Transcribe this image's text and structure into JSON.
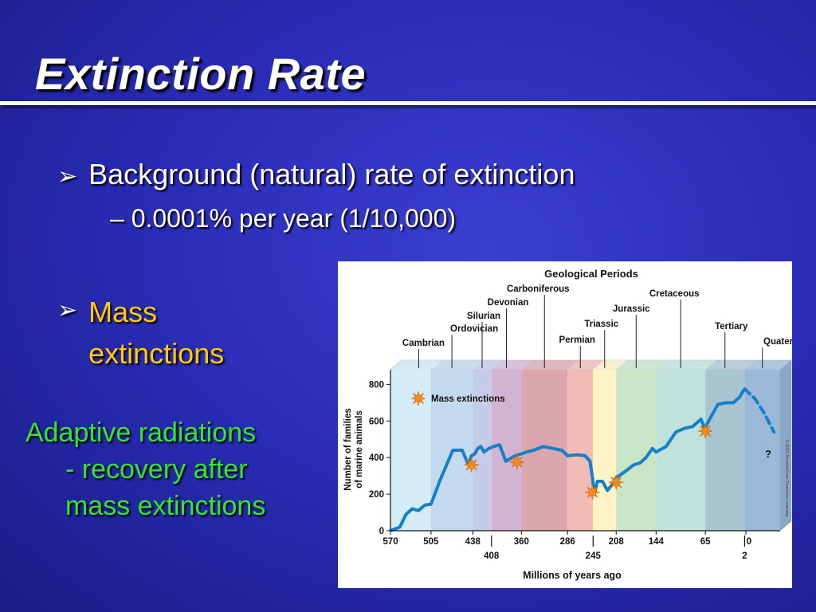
{
  "slide": {
    "title": "Extinction Rate",
    "bullets": [
      {
        "text": "Background (natural) rate of extinction",
        "sub": "– 0.0001% per year (1/10,000)"
      },
      {
        "line1": "Mass",
        "line2": "extinctions"
      }
    ],
    "adaptive_lines": [
      "Adaptive radiations",
      "- recovery after",
      "mass extinctions"
    ],
    "arrow_glyph": "➢"
  },
  "chart_data": {
    "type": "line",
    "title": "Geological Periods",
    "xlabel": "Millions of years ago",
    "ylabel_lines": [
      "Number of families",
      "of marine animals"
    ],
    "ylim": [
      0,
      880
    ],
    "xlim": [
      570,
      -55
    ],
    "yticks": [
      0,
      200,
      400,
      600,
      800
    ],
    "x_ticks_top": [
      "570",
      "505",
      "438",
      "360",
      "286",
      "208",
      "144",
      "65",
      "0"
    ],
    "x_ticks_bottom": [
      "408",
      "245",
      "2"
    ],
    "periods": [
      {
        "name": "Cambrian",
        "start": 570,
        "end": 505,
        "color": "#d4ecf8"
      },
      {
        "name": "Ordovician",
        "start": 505,
        "end": 438,
        "color": "#c3d9ee"
      },
      {
        "name": "Silurian",
        "start": 438,
        "end": 408,
        "color": "#c6cbe9"
      },
      {
        "name": "Devonian",
        "start": 408,
        "end": 360,
        "color": "#d3b3d3"
      },
      {
        "name": "Carboniferous",
        "start": 360,
        "end": 286,
        "color": "#dca6ae"
      },
      {
        "name": "Permian",
        "start": 286,
        "end": 245,
        "color": "#f2bbb5"
      },
      {
        "name": "Triassic",
        "start": 245,
        "end": 208,
        "color": "#fff2c4"
      },
      {
        "name": "Jurassic",
        "start": 208,
        "end": 144,
        "color": "#c8e5c6"
      },
      {
        "name": "Cretaceous",
        "start": 144,
        "end": 65,
        "color": "#bfe3dc"
      },
      {
        "name": "Tertiary",
        "start": 65,
        "end": 2,
        "color": "#a9c5d2"
      },
      {
        "name": "Quaternary",
        "start": 2,
        "end": -55,
        "color": "#9ab9d8"
      }
    ],
    "series": [
      {
        "name": "",
        "color": "#1680c6",
        "x": [
          570,
          555,
          545,
          535,
          525,
          515,
          505,
          490,
          470,
          455,
          445,
          440,
          435,
          430,
          425,
          420,
          412,
          405,
          395,
          385,
          370,
          360,
          352,
          340,
          325,
          310,
          295,
          286,
          270,
          258,
          250,
          246,
          243,
          238,
          230,
          222,
          215,
          208,
          195,
          180,
          170,
          160,
          150,
          144,
          128,
          112,
          98,
          85,
          72,
          66,
          58,
          45,
          32,
          20,
          10,
          5,
          2
        ],
        "y": [
          0,
          20,
          90,
          120,
          110,
          140,
          145,
          280,
          440,
          440,
          360,
          410,
          420,
          450,
          460,
          430,
          450,
          460,
          470,
          380,
          410,
          420,
          430,
          440,
          460,
          450,
          440,
          410,
          415,
          410,
          380,
          290,
          200,
          270,
          270,
          220,
          250,
          290,
          320,
          360,
          370,
          400,
          450,
          430,
          460,
          540,
          560,
          570,
          610,
          560,
          610,
          690,
          700,
          700,
          730,
          760,
          775
        ]
      },
      {
        "name": "",
        "color": "#1680c6",
        "dashed": true,
        "x": [
          2,
          -15,
          -30,
          -45
        ],
        "y": [
          775,
          720,
          640,
          540
        ]
      }
    ],
    "mass_extinctions": [
      {
        "x": 440,
        "y": 360
      },
      {
        "x": 367,
        "y": 375
      },
      {
        "x": 246,
        "y": 210
      },
      {
        "x": 208,
        "y": 265
      },
      {
        "x": 65,
        "y": 545
      }
    ],
    "legend": {
      "label": "Mass extinctions",
      "position": "top-left"
    },
    "annotations": [
      "?",
      "© 2002 Brooks/Cole-Thomson Learning"
    ]
  }
}
